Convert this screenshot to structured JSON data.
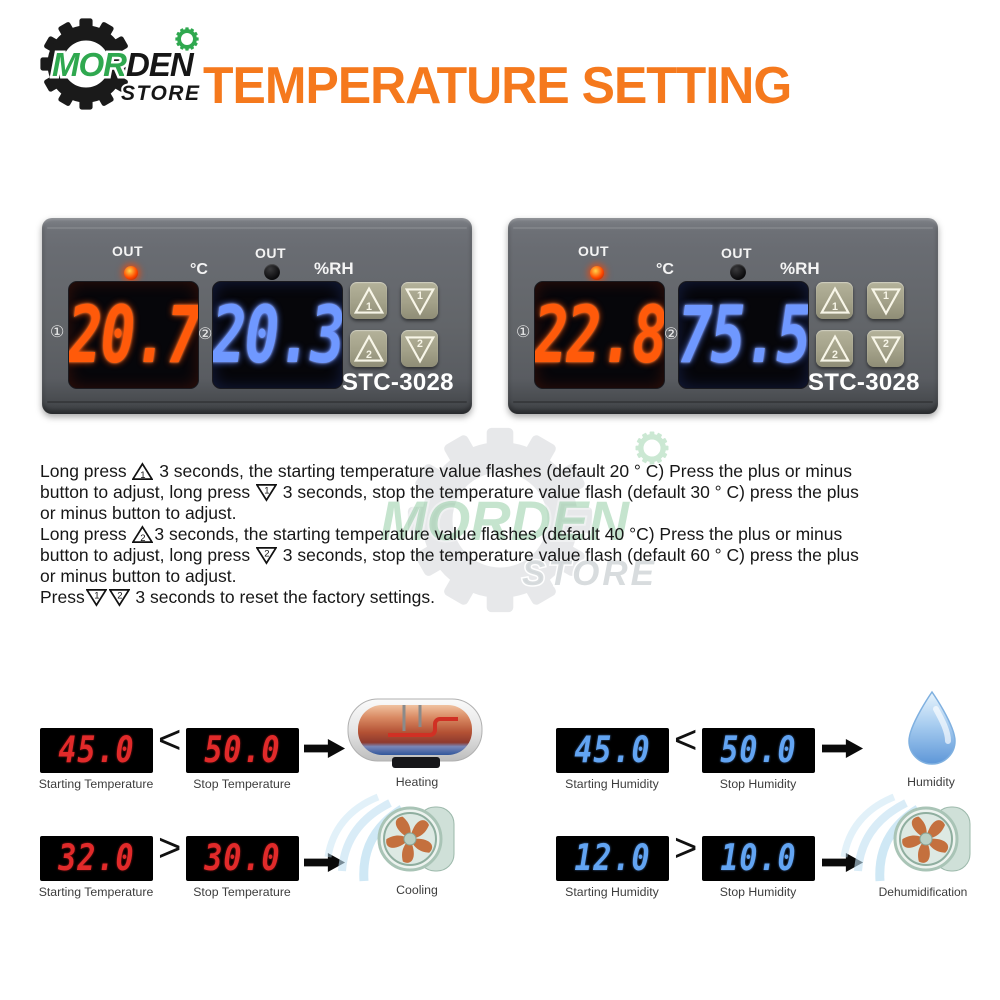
{
  "logo": {
    "brand_green": "MOR",
    "brand_black": "DEN",
    "store": "STORE"
  },
  "title": "TEMPERATURE SETTING",
  "watermark": {
    "brand": "MORDEN",
    "store": "STORE"
  },
  "devices": [
    {
      "model": "STC-3028",
      "out_left": "OUT",
      "out_right": "OUT",
      "unit_left": "°C",
      "unit_right": "%RH",
      "channel1": "①",
      "channel2": "②",
      "display_left": "20.7",
      "display_right": "20.3"
    },
    {
      "model": "STC-3028",
      "out_left": "OUT",
      "out_right": "OUT",
      "unit_left": "°C",
      "unit_right": "%RH",
      "channel1": "①",
      "channel2": "②",
      "display_left": "22.8",
      "display_right": "75.5"
    }
  ],
  "device_buttons": {
    "up1": "1",
    "down1": "1",
    "up2": "2",
    "down2": "2"
  },
  "instructions": {
    "lines": [
      [
        {
          "t": "Long press "
        },
        {
          "s": "up",
          "n": "1"
        },
        {
          "t": " 3 seconds, the starting temperature value flashes (default 20 ° C) Press the plus or minus"
        }
      ],
      [
        {
          "t": "button to adjust, long press "
        },
        {
          "s": "down",
          "n": "1"
        },
        {
          "t": " 3 seconds, stop the temperature value flash (default 30 ° C) press the plus"
        }
      ],
      [
        {
          "t": "or minus button to adjust."
        }
      ],
      [
        {
          "t": "Long press "
        },
        {
          "s": "up",
          "n": "2"
        },
        {
          "t": "3 seconds, the starting temperature value flashes (default 40 °C) Press the plus or minus"
        }
      ],
      [
        {
          "t": "button to adjust, long press "
        },
        {
          "s": "down",
          "n": "2"
        },
        {
          "t": " 3 seconds, stop the temperature value flash (default 60 ° C) press the plus"
        }
      ],
      [
        {
          "t": "or minus button to adjust."
        }
      ],
      [
        {
          "t": "Press"
        },
        {
          "s": "down",
          "n": "1"
        },
        {
          "s": "down",
          "n": "2"
        },
        {
          "t": " 3 seconds to reset the factory settings."
        }
      ]
    ]
  },
  "flows": {
    "temperature": [
      {
        "start_value": "45.0",
        "start_label": "Starting Temperature",
        "comparator": "<",
        "stop_value": "50.0",
        "stop_label": "Stop Temperature",
        "result_label": "Heating"
      },
      {
        "start_value": "32.0",
        "start_label": "Starting Temperature",
        "comparator": ">",
        "stop_value": "30.0",
        "stop_label": "Stop Temperature",
        "result_label": "Cooling"
      }
    ],
    "humidity": [
      {
        "start_value": "45.0",
        "start_label": "Starting Humidity",
        "comparator": "<",
        "stop_value": "50.0",
        "stop_label": "Stop Humidity",
        "result_label": "Humidity"
      },
      {
        "start_value": "12.0",
        "start_label": "Starting Humidity",
        "comparator": ">",
        "stop_value": "10.0",
        "stop_label": "Stop Humidity",
        "result_label": "Dehumidification"
      }
    ]
  },
  "colors": {
    "title_orange": "#f5791d",
    "logo_green": "#2fa84f",
    "red_display": "#ff4a00",
    "blue_display": "#6b93ff",
    "red_segment": "#df1f24",
    "blue_segment": "#5e9ff0"
  }
}
